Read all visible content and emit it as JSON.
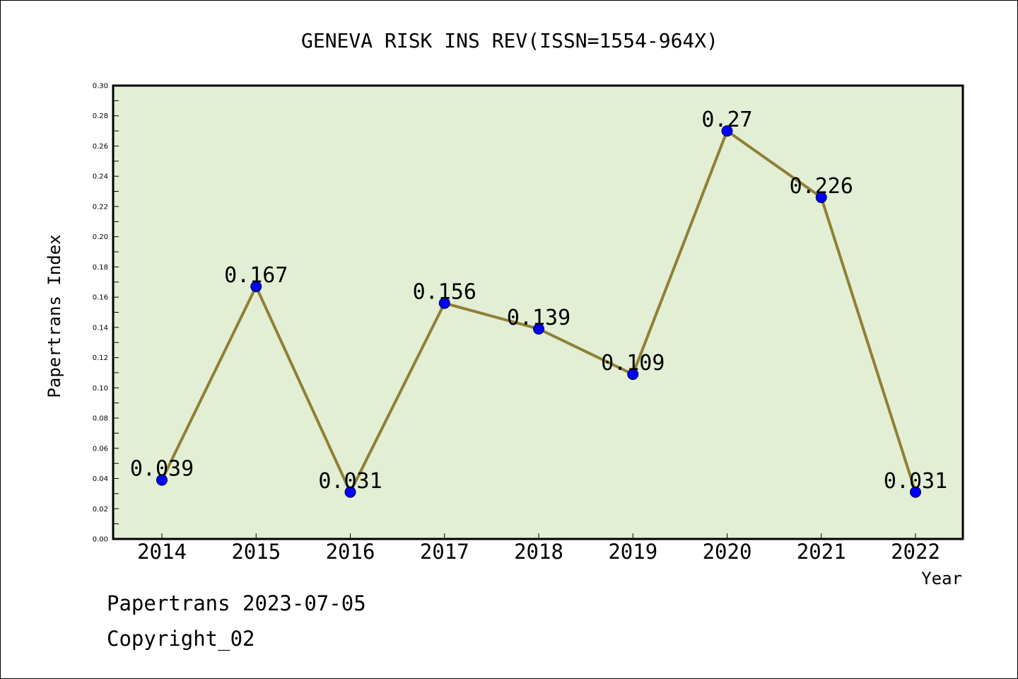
{
  "chart_data": {
    "type": "line",
    "title": "GENEVA RISK INS REV(ISSN=1554-964X)",
    "xlabel": "Year",
    "ylabel": "Papertrans Index",
    "categories": [
      "2014",
      "2015",
      "2016",
      "2017",
      "2018",
      "2019",
      "2020",
      "2021",
      "2022"
    ],
    "values": [
      0.039,
      0.167,
      0.031,
      0.156,
      0.139,
      0.109,
      0.27,
      0.226,
      0.031
    ],
    "data_labels": [
      "0.039",
      "0.167",
      "0.031",
      "0.156",
      "0.139",
      "0.109",
      "0.27",
      "0.226",
      "0.031"
    ],
    "ylim": [
      0,
      0.3
    ],
    "yticks": [
      "0.00",
      "0.02",
      "0.04",
      "0.06",
      "0.08",
      "0.10",
      "0.12",
      "0.14",
      "0.16",
      "0.18",
      "0.20",
      "0.22",
      "0.24",
      "0.26",
      "0.28",
      "0.30"
    ],
    "grid": false,
    "colors": {
      "plot_background": "#e2efd5",
      "line": "#8f8035",
      "marker": "#0000ff"
    }
  },
  "footer": {
    "line1": "Papertrans 2023-07-05",
    "line2": "Copyright_02"
  }
}
